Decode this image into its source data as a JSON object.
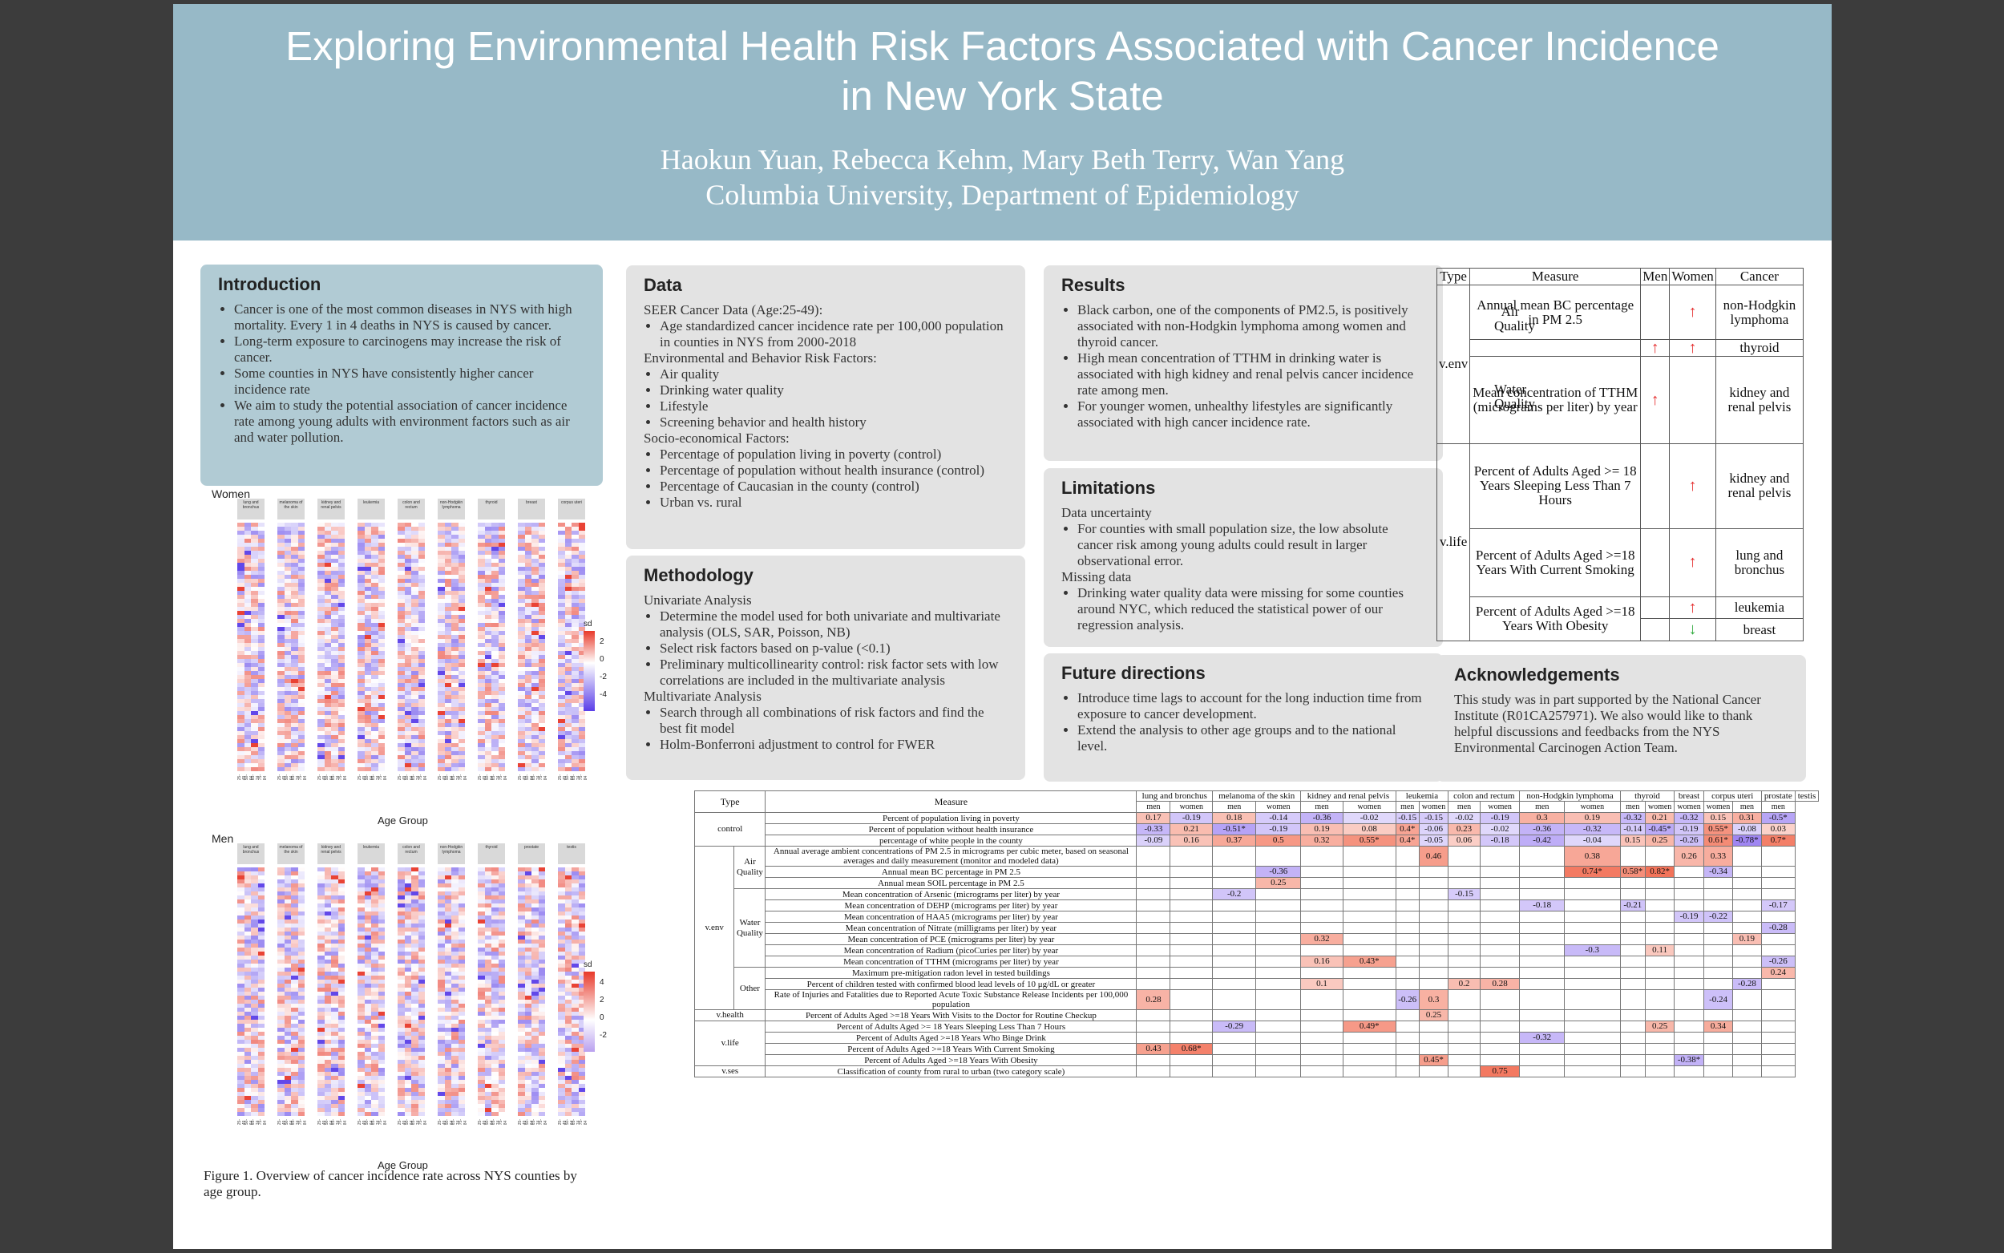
{
  "header": {
    "title_line1": "Exploring Environmental Health Risk Factors Associated with Cancer Incidence",
    "title_line2": "in New York State",
    "authors": "Haokun Yuan, Rebecca Kehm, Mary Beth Terry, Wan Yang",
    "affiliation": "Columbia University, Department of Epidemiology"
  },
  "intro": {
    "heading": "Introduction",
    "items": [
      "Cancer is one of the most common diseases in NYS with high mortality. Every 1 in 4 deaths in NYS is caused by cancer.",
      "Long-term exposure to carcinogens may increase the risk of cancer.",
      "Some counties in NYS have consistently higher cancer incidence rate",
      "We aim to study the potential association of cancer incidence rate  among young adults with environment factors such as air and water pollution."
    ]
  },
  "data": {
    "heading": "Data",
    "seer": "SEER Cancer Data (Age:25-49):",
    "seer_items": [
      "Age standardized cancer incidence rate per 100,000 population in counties in NYS from 2000-2018"
    ],
    "env": "Environmental and Behavior Risk Factors:",
    "env_items": [
      "Air quality",
      "Drinking water quality",
      "Lifestyle",
      "Screening behavior and health history"
    ],
    "socio": "Socio-economical Factors:",
    "socio_items": [
      "Percentage of population living in poverty (control)",
      "Percentage of  population without health insurance (control)",
      "Percentage of Caucasian in the county (control)",
      "Urban vs. rural"
    ]
  },
  "methodology": {
    "heading": "Methodology",
    "uni": "Univariate Analysis",
    "uni_items": [
      "Determine the model used for both univariate and multivariate analysis (OLS, SAR, Poisson, NB)",
      "Select risk factors based on p-value (<0.1)",
      "Preliminary multicollinearity control: risk factor sets with low correlations are included in the multivariate analysis"
    ],
    "multi": "Multivariate Analysis",
    "multi_items": [
      "Search through all combinations of risk factors and find the best fit model",
      "Holm-Bonferroni adjustment to control for FWER"
    ]
  },
  "results": {
    "heading": "Results",
    "items": [
      "Black carbon, one of the components of PM2.5, is positively associated with non-Hodgkin lymphoma among women and thyroid cancer.",
      "High mean concentration of TTHM in drinking water is associated with high kidney and renal pelvis cancer incidence rate among men.",
      "For younger women, unhealthy lifestyles are significantly associated with high cancer incidence rate."
    ]
  },
  "limitations": {
    "heading": "Limitations",
    "sub1": "Data uncertainty",
    "items1": [
      "For counties with small population size, the low absolute cancer risk among young adults could result in larger observational error."
    ],
    "sub2": "Missing data",
    "items2": [
      "Drinking water quality data were missing for some counties around NYC, which reduced the statistical power of our regression analysis."
    ]
  },
  "future": {
    "heading": "Future directions",
    "items": [
      "Introduce time lags to account for the long induction time from exposure to cancer development.",
      "Extend the analysis to other age groups and to the national level."
    ]
  },
  "ack": {
    "heading": "Acknowledgements",
    "text": "This study was in part supported by the National Cancer Institute (R01CA257971). We also would like to thank helpful discussions and feedbacks from the NYS Environmental Carcinogen Action Team."
  },
  "summary_table": {
    "headers": [
      "Type",
      "Measure",
      "Men",
      "Women",
      "Cancer"
    ],
    "venv": "v.env",
    "vlife": "v.life",
    "air": "Air Quality",
    "water": "Water Quality",
    "bc": "Annual mean BC percentage in PM 2.5",
    "tthm": "Mean concentration of TTHM (micrograms per liter) by year",
    "sleep": "Percent of Adults Aged >= 18 Years Sleeping Less Than 7 Hours",
    "smoke": "Percent of Adults Aged >=18 Years With Current Smoking",
    "obesity": "Percent of Adults Aged >=18 Years With Obesity",
    "c_nhl": "non-Hodgkin lymphoma",
    "c_thyroid": "thyroid",
    "c_kidney": "kidney and renal pelvis",
    "c_lung": "lung and bronchus",
    "c_leuk": "leukemia",
    "c_breast": "breast",
    "up": "↑",
    "down": "↓"
  },
  "heatmaps": {
    "women_title": "Women",
    "men_title": "Men",
    "x_title": "Age Group",
    "legend_title": "sd",
    "women_cols": [
      "lung and bronchus",
      "melanoma of the skin",
      "kidney and renal pelvis",
      "leukemia",
      "colon and rectum",
      "non-Hodgkin lymphoma",
      "thyroid",
      "breast",
      "corpus uteri"
    ],
    "men_cols": [
      "lung and bronchus",
      "melanoma of the skin",
      "kidney and renal pelvis",
      "leukemia",
      "colon and rectum",
      "non-Hodgkin lymphoma",
      "thyroid",
      "prostate",
      "testis"
    ],
    "age_groups": [
      "25-49",
      "50-64",
      "65-74",
      "75-84"
    ],
    "women_legend_ticks": [
      "2",
      "0",
      "-2",
      "-4"
    ],
    "men_legend_ticks": [
      "4",
      "2",
      "0",
      "-2"
    ],
    "caption": "Figure 1. Overview of cancer incidence rate across NYS counties by age group.",
    "colors": {
      "high": "#e8392a",
      "low": "#5a3ee8",
      "mid": "#ffffff"
    }
  },
  "big_table": {
    "type_header": "Type",
    "measure_header": "Measure",
    "cancers": [
      "lung and bronchus",
      "melanoma of the skin",
      "kidney and renal pelvis",
      "leukemia",
      "colon and rectum",
      "non-Hodgkin lymphoma",
      "thyroid",
      "breast",
      "corpus uteri",
      "prostate",
      "testis"
    ],
    "men": "men",
    "women": "women",
    "rows": [
      {
        "type": "control",
        "sub": "",
        "measure": "Percent of population living in poverty",
        "vals": [
          "0.17",
          "-0.19",
          "0.18",
          "-0.14",
          "-0.36",
          "-0.02",
          "-0.15",
          "-0.15",
          "-0.02",
          "-0.19",
          "0.3",
          "0.19",
          "-0.32",
          "0.21",
          "-0.32",
          "0.15",
          "0.31",
          "-0.5*"
        ]
      },
      {
        "type": "",
        "sub": "",
        "measure": "Percent of population without health insurance",
        "vals": [
          "-0.33",
          "0.21",
          "-0.51*",
          "-0.19",
          "0.19",
          "0.08",
          "0.4*",
          "-0.06",
          "0.23",
          "-0.02",
          "-0.36",
          "-0.32",
          "-0.14",
          "-0.45*",
          "-0.19",
          "0.55*",
          "-0.08",
          "0.03"
        ]
      },
      {
        "type": "",
        "sub": "",
        "measure": "percentage of white people in the county",
        "vals": [
          "-0.09",
          "0.16",
          "0.37",
          "0.5",
          "0.32",
          "0.55*",
          "0.4*",
          "-0.05",
          "0.06",
          "-0.18",
          "-0.42",
          "-0.04",
          "0.15",
          "0.25",
          "-0.26",
          "0.61*",
          "-0.78*",
          "0.7*"
        ]
      },
      {
        "type": "v.env",
        "sub": "Air Quality",
        "measure": "Annual average ambient concentrations of PM 2.5 in micrograms per cubic meter, based on seasonal averages and daily measurement (monitor and modeled data)",
        "vals": [
          "",
          "",
          "",
          "",
          "",
          "",
          "",
          "0.46",
          "",
          "",
          "",
          "0.38",
          "",
          "",
          "0.26",
          "0.33",
          "",
          ""
        ]
      },
      {
        "type": "",
        "sub": "",
        "measure": "Annual mean BC percentage in PM 2.5",
        "vals": [
          "",
          "",
          "",
          "-0.36",
          "",
          "",
          "",
          "",
          "",
          "",
          "",
          "0.74*",
          "0.58*",
          "0.82*",
          "",
          "-0.34",
          "",
          ""
        ]
      },
      {
        "type": "",
        "sub": "",
        "measure": "Annual mean SOIL percentage in PM 2.5",
        "vals": [
          "",
          "",
          "",
          "0.25",
          "",
          "",
          "",
          "",
          "",
          "",
          "",
          "",
          "",
          "",
          "",
          "",
          "",
          ""
        ]
      },
      {
        "type": "",
        "sub": "Water Quality",
        "measure": "Mean concentration of Arsenic (micrograms per liter) by year",
        "vals": [
          "",
          "",
          "-0.2",
          "",
          "",
          "",
          "",
          "",
          "-0.15",
          "",
          "",
          "",
          "",
          "",
          "",
          "",
          "",
          ""
        ]
      },
      {
        "type": "",
        "sub": "",
        "measure": "Mean concentration of DEHP (micrograms per liter) by year",
        "vals": [
          "",
          "",
          "",
          "",
          "",
          "",
          "",
          "",
          "",
          "",
          "-0.18",
          "",
          "-0.21",
          "",
          "",
          "",
          "",
          "-0.17"
        ]
      },
      {
        "type": "",
        "sub": "",
        "measure": "Mean concentration of HAA5 (micrograms per liter) by year",
        "vals": [
          "",
          "",
          "",
          "",
          "",
          "",
          "",
          "",
          "",
          "",
          "",
          "",
          "",
          "",
          "-0.19",
          "-0.22",
          "",
          ""
        ]
      },
      {
        "type": "",
        "sub": "",
        "measure": "Mean concentration of Nitrate (milligrams per liter) by year",
        "vals": [
          "",
          "",
          "",
          "",
          "",
          "",
          "",
          "",
          "",
          "",
          "",
          "",
          "",
          "",
          "",
          "",
          "",
          "-0.28"
        ]
      },
      {
        "type": "",
        "sub": "",
        "measure": "Mean concentration of PCE (micrograms per liter) by year",
        "vals": [
          "",
          "",
          "",
          "",
          "0.32",
          "",
          "",
          "",
          "",
          "",
          "",
          "",
          "",
          "",
          "",
          "",
          "0.19",
          ""
        ]
      },
      {
        "type": "",
        "sub": "",
        "measure": "Mean concentration of Radium (picoCuries per liter) by year",
        "vals": [
          "",
          "",
          "",
          "",
          "",
          "",
          "",
          "",
          "",
          "",
          "",
          "-0.3",
          "",
          "0.11",
          "",
          "",
          "",
          ""
        ]
      },
      {
        "type": "",
        "sub": "",
        "measure": "Mean concentration of TTHM (micrograms per liter) by year",
        "vals": [
          "",
          "",
          "",
          "",
          "0.16",
          "0.43*",
          "",
          "",
          "",
          "",
          "",
          "",
          "",
          "",
          "",
          "",
          "",
          "-0.26"
        ]
      },
      {
        "type": "",
        "sub": "Other",
        "measure": "Maximum pre-mitigation radon level in tested buildings",
        "vals": [
          "",
          "",
          "",
          "",
          "",
          "",
          "",
          "",
          "",
          "",
          "",
          "",
          "",
          "",
          "",
          "",
          "",
          "0.24"
        ]
      },
      {
        "type": "",
        "sub": "",
        "measure": "Percent of children tested with confirmed blood lead levels of 10 μg/dL or greater",
        "vals": [
          "",
          "",
          "",
          "",
          "0.1",
          "",
          "",
          "",
          "0.2",
          "0.28",
          "",
          "",
          "",
          "",
          "",
          "",
          "-0.28",
          ""
        ]
      },
      {
        "type": "",
        "sub": "",
        "measure": "Rate of Injuries and Fatalities due to Reported Acute Toxic Substance Release Incidents per 100,000 population",
        "vals": [
          "0.28",
          "",
          "",
          "",
          "",
          "",
          "-0.26",
          "0.3",
          "",
          "",
          "",
          "",
          "",
          "",
          "",
          "-0.24",
          "",
          ""
        ]
      },
      {
        "type": "v.health",
        "sub": "",
        "measure": "Percent of Adults Aged >=18 Years With Visits to the Doctor for Routine Checkup",
        "vals": [
          "",
          "",
          "",
          "",
          "",
          "",
          "",
          "0.25",
          "",
          "",
          "",
          "",
          "",
          "",
          "",
          "",
          "",
          ""
        ]
      },
      {
        "type": "v.life",
        "sub": "",
        "measure": "Percent of Adults Aged >= 18 Years Sleeping Less Than 7 Hours",
        "vals": [
          "",
          "",
          "-0.29",
          "",
          "",
          "0.49*",
          "",
          "",
          "",
          "",
          "",
          "",
          "",
          "0.25",
          "",
          "0.34",
          "",
          ""
        ]
      },
      {
        "type": "",
        "sub": "",
        "measure": "Percent of Adults Aged >=18 Years Who Binge Drink",
        "vals": [
          "",
          "",
          "",
          "",
          "",
          "",
          "",
          "",
          "",
          "",
          "-0.32",
          "",
          "",
          "",
          "",
          "",
          "",
          ""
        ]
      },
      {
        "type": "",
        "sub": "",
        "measure": "Percent of Adults Aged >=18 Years With Current Smoking",
        "vals": [
          "0.43",
          "0.68*",
          "",
          "",
          "",
          "",
          "",
          "",
          "",
          "",
          "",
          "",
          "",
          "",
          "",
          "",
          "",
          ""
        ]
      },
      {
        "type": "",
        "sub": "",
        "measure": "Percent of Adults Aged >=18 Years With Obesity",
        "vals": [
          "",
          "",
          "",
          "",
          "",
          "",
          "",
          "0.45*",
          "",
          "",
          "",
          "",
          "",
          "",
          "-0.38*",
          "",
          "",
          ""
        ]
      },
      {
        "type": "v.ses",
        "sub": "",
        "measure": "Classification of county from rural to urban (two category scale)",
        "vals": [
          "",
          "",
          "",
          "",
          "",
          "",
          "",
          "",
          "",
          "0.75",
          "",
          "",
          "",
          "",
          "",
          "",
          "",
          ""
        ]
      }
    ]
  }
}
